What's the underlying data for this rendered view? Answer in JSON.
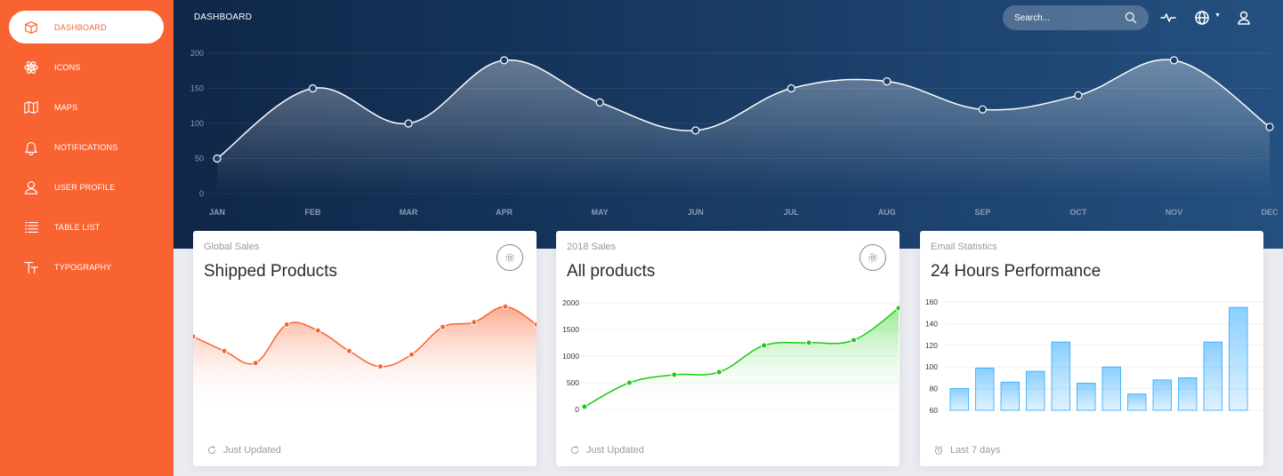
{
  "sidebar": {
    "items": [
      {
        "label": "DASHBOARD",
        "icon": "box-icon",
        "active": true
      },
      {
        "label": "ICONS",
        "icon": "atom-icon"
      },
      {
        "label": "MAPS",
        "icon": "map-icon"
      },
      {
        "label": "NOTIFICATIONS",
        "icon": "bell-icon"
      },
      {
        "label": "USER PROFILE",
        "icon": "user-icon"
      },
      {
        "label": "TABLE LIST",
        "icon": "list-icon"
      },
      {
        "label": "TYPOGRAPHY",
        "icon": "text-icon"
      }
    ]
  },
  "header": {
    "title": "DASHBOARD",
    "search_placeholder": "Search...",
    "icons": [
      "search-icon",
      "pulse-icon",
      "globe-icon",
      "user-icon"
    ]
  },
  "colors": {
    "sidebar": "#f96332",
    "header": "#1b3f6a",
    "orange": "#f96332",
    "green": "#18ce0f",
    "blue": "#2ca8ff"
  },
  "cards": [
    {
      "category": "Global Sales",
      "title": "Shipped Products",
      "footer": "Just Updated",
      "footer_icon": "refresh-icon"
    },
    {
      "category": "2018 Sales",
      "title": "All products",
      "footer": "Just Updated",
      "footer_icon": "refresh-icon"
    },
    {
      "category": "Email Statistics",
      "title": "24 Hours Performance",
      "footer": "Last 7 days",
      "footer_icon": "alarm-icon"
    }
  ],
  "chart_data": [
    {
      "type": "line",
      "categories": [
        "JAN",
        "FEB",
        "MAR",
        "APR",
        "MAY",
        "JUN",
        "JUL",
        "AUG",
        "SEP",
        "OCT",
        "NOV",
        "DEC"
      ],
      "values": [
        50,
        150,
        100,
        190,
        130,
        90,
        150,
        160,
        120,
        140,
        190,
        95
      ],
      "ylim": [
        0,
        200
      ],
      "yticks": [
        0,
        50,
        100,
        150,
        200
      ],
      "grid": true
    },
    {
      "type": "line",
      "values": [
        60,
        48,
        38,
        70,
        65,
        48,
        35,
        45,
        68,
        72,
        85,
        70
      ],
      "grid": false,
      "axes": false
    },
    {
      "type": "line",
      "values": [
        50,
        500,
        650,
        700,
        1200,
        1250,
        1300,
        1900
      ],
      "ylim": [
        0,
        2000
      ],
      "yticks": [
        0,
        500,
        1000,
        1500,
        2000
      ],
      "grid": true
    },
    {
      "type": "bar",
      "values": [
        80,
        99,
        86,
        96,
        123,
        85,
        100,
        75,
        88,
        90,
        123,
        155
      ],
      "ylim": [
        60,
        160
      ],
      "yticks": [
        60,
        80,
        100,
        120,
        140,
        160
      ],
      "grid": true
    }
  ]
}
